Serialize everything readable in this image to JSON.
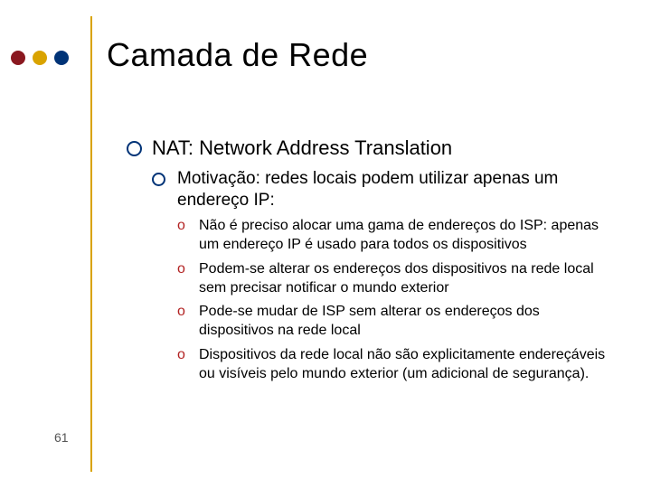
{
  "slide": {
    "title": "Camada de Rede",
    "page_number": "61",
    "decor": {
      "dot_colors": [
        "#8a1820",
        "#d9a300",
        "#003377"
      ],
      "divider_color": "#d9a300",
      "title_color": "#000000",
      "title_fontsize": 36,
      "body_fontsize_l1": 22,
      "body_fontsize_l2": 19,
      "body_fontsize_l3": 16,
      "circle_bullet_border": "#003377",
      "o_bullet_color": "#b22222",
      "background": "#ffffff"
    },
    "content": {
      "l1": "NAT: Network Address Translation",
      "l2": "Motivação: redes locais podem utilizar apenas um endereço IP:",
      "l3": [
        "Não é preciso alocar uma gama de endereços do ISP: apenas um endereço IP é usado para todos os dispositivos",
        "Podem-se alterar os endereços dos dispositivos na rede local sem precisar notificar o mundo exterior",
        "Pode-se mudar de ISP sem alterar os endereços dos dispositivos na rede local",
        "Dispositivos da rede local não são explicitamente endereçáveis ou visíveis pelo mundo exterior (um adicional de segurança)."
      ]
    }
  }
}
